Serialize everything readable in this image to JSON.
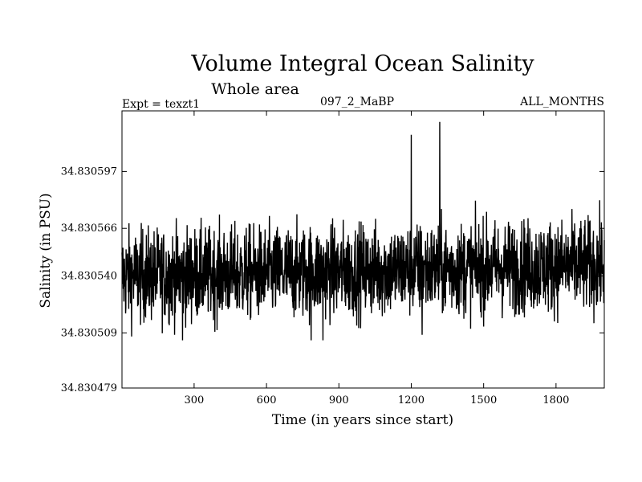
{
  "chart_data": {
    "type": "line",
    "title": "Volume Integral Ocean Salinity",
    "subtitle": "Whole area",
    "experiment_label": "Expt = texzt1",
    "run_label": "097_2_MaBP",
    "period_label": "ALL_MONTHS",
    "xlabel": "Time (in years since start)",
    "ylabel": "Salinity (in PSU)",
    "xlim": [
      1,
      2000
    ],
    "ylim": [
      34.830479,
      34.83063
    ],
    "x_ticks": [
      300,
      600,
      900,
      1200,
      1500,
      1800
    ],
    "x_tick_labels": [
      "300",
      "600",
      "900",
      "1200",
      "1500",
      "1800"
    ],
    "y_ticks": [
      34.830479,
      34.830509,
      34.83054,
      34.830566,
      34.830597
    ],
    "y_tick_labels": [
      "34.830479",
      "34.830509",
      "34.830540",
      "34.830566",
      "34.830597"
    ],
    "series": [
      {
        "name": "Salinity",
        "color": "#000000",
        "summary": "Annual values (one per year, ~2000 points) fluctuating around a mean of ~34.830543 PSU, mostly between 34.830515 and 34.830575, with a very slight upward drift.",
        "mean": 34.830543,
        "std": 1.25e-05,
        "min": 34.830502,
        "max": 34.830624,
        "spikes": [
          {
            "x": 1200,
            "y": 34.830617
          },
          {
            "x": 1318,
            "y": 34.830624
          },
          {
            "x": 252,
            "y": 34.830505
          },
          {
            "x": 785,
            "y": 34.830505
          },
          {
            "x": 834,
            "y": 34.830505
          },
          {
            "x": 1245,
            "y": 34.830508
          }
        ]
      }
    ]
  }
}
